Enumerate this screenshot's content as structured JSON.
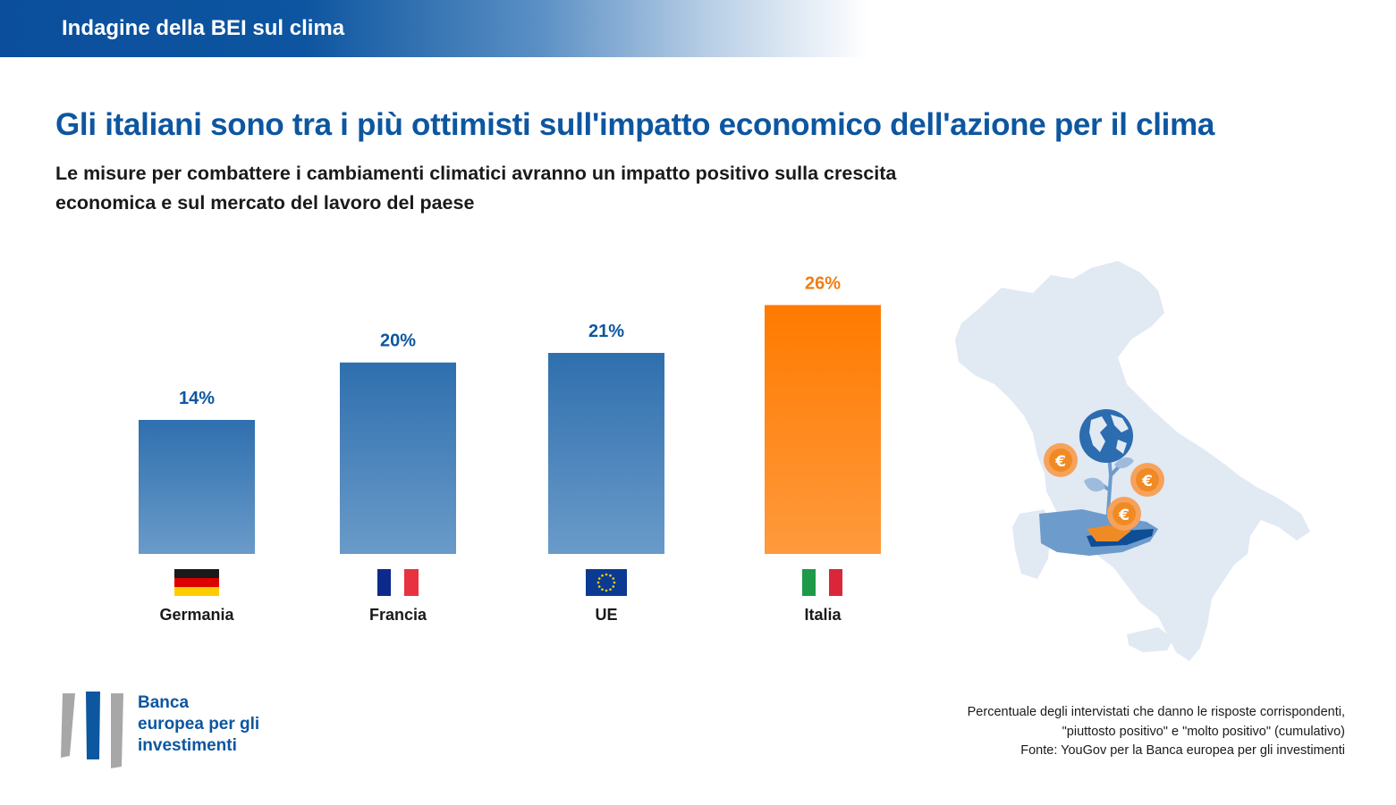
{
  "banner": {
    "title": "Indagine della BEI sul clima"
  },
  "headline": "Gli italiani sono tra i più ottimisti sull'impatto economico dell'azione per il clima",
  "subtitle_lines": [
    "Le misure per combattere i cambiamenti climatici avranno un impatto positivo sulla crescita",
    "economica e sul mercato del lavoro del paese"
  ],
  "chart_data": {
    "type": "bar",
    "categories": [
      "Germania",
      "Francia",
      "UE",
      "Italia"
    ],
    "values": [
      14,
      20,
      21,
      26
    ],
    "value_labels": [
      "14%",
      "20%",
      "21%",
      "26%"
    ],
    "title": "Gli italiani sono tra i più ottimisti sull'impatto economico dell'azione per il clima",
    "ylim": [
      0,
      28
    ],
    "grid": false,
    "highlight": "Italia",
    "colors": {
      "default_top": "#2f6fae",
      "default_bottom": "#6a9bc9",
      "highlight_top": "#ff7a00",
      "highlight_bottom": "#ff9a3c",
      "label_default": "#0d56a0",
      "label_highlight": "#f07d14"
    },
    "flags": [
      "germany-flag",
      "france-flag",
      "eu-flag",
      "italy-flag"
    ]
  },
  "logo": {
    "lines": [
      "Banca",
      "europea per gli",
      "investimenti"
    ],
    "colors": {
      "blue": "#0d56a0",
      "grey": "#a7a7a7"
    }
  },
  "footnote": {
    "lines": [
      "Percentuale degli intervistati che danno le risposte corrispondenti,",
      "\"piuttosto positivo\" e \"molto positivo\" (cumulativo)",
      "Fonte: YouGov per la Banca europea per gli investimenti"
    ]
  },
  "illustration": {
    "icons": [
      "italy-map-icon",
      "globe-icon",
      "euro-coin-icon",
      "hand-icon",
      "plant-icon"
    ]
  }
}
